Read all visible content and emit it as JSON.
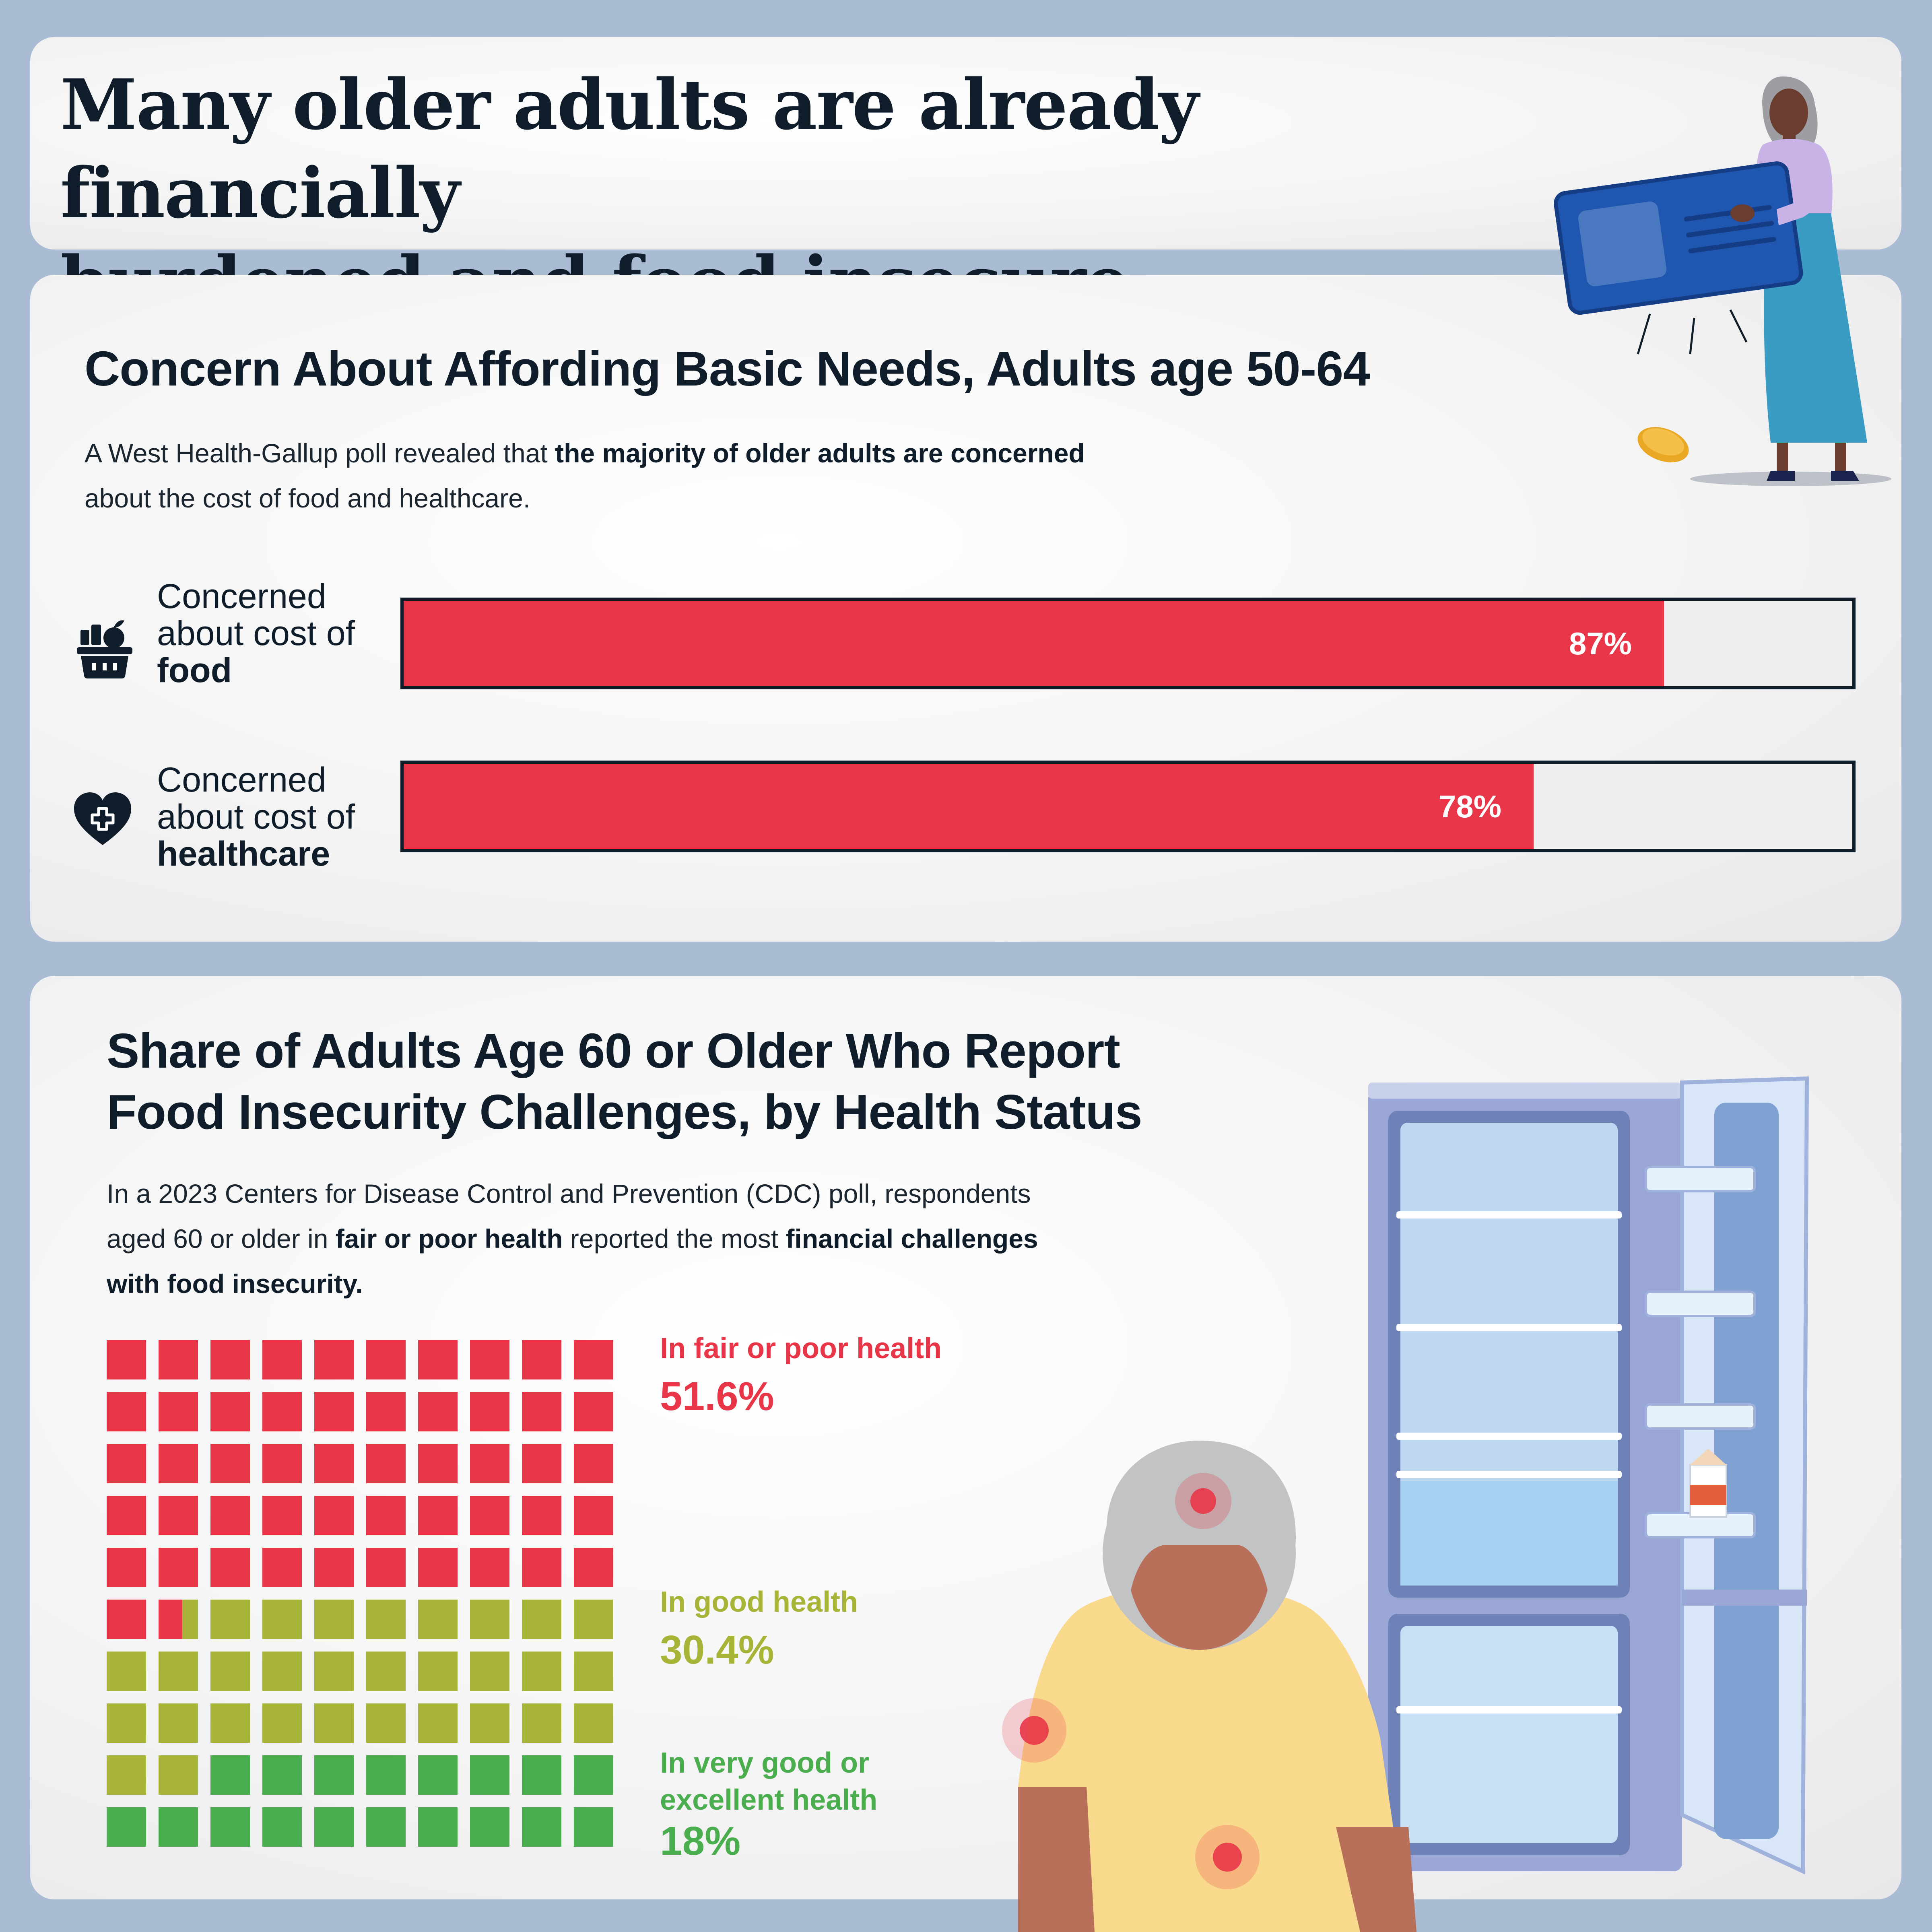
{
  "header": {
    "title_line1": "Many older adults are already financially",
    "title_word_burdened": "burdened",
    "title_and_food": " and food ",
    "title_word_insecure": "insecure"
  },
  "afford_section": {
    "title": "Concern About Affording Basic Needs, Adults age 50-64",
    "desc_plain_1": "A West Health-Gallup poll revealed that ",
    "desc_bold": "the majority of older adults are concerned",
    "desc_plain_2": "about the cost of food and healthcare."
  },
  "insecurity_section": {
    "title_line1": "Share of Adults Age 60 or Older Who Report",
    "title_line2": "Food Insecurity Challenges, by Health Status",
    "desc_1": "In a 2023 Centers for Disease Control and Prevention (CDC) poll, respondents",
    "desc_2a": "aged 60 or older in ",
    "desc_2b": "fair or poor health",
    "desc_2c": " reported the most ",
    "desc_2d": "financial challenges",
    "desc_3": "with food insecurity."
  },
  "colors": {
    "red": "#e83648",
    "olive": "#a8b438",
    "green": "#4aae4f",
    "navy": "#0f1d2b"
  },
  "icons": {
    "food": "grocery-basket-icon",
    "healthcare": "heart-medical-icon"
  },
  "chart_data": [
    {
      "type": "bar",
      "orientation": "horizontal",
      "categories": [
        "Concerned about cost of food",
        "Concerned about cost of healthcare"
      ],
      "labels": [
        {
          "line1": "Concerned",
          "line2": "about cost of",
          "line3": "food"
        },
        {
          "line1": "Concerned",
          "line2": "about cost of",
          "line3": "healthcare"
        }
      ],
      "values": [
        87,
        78
      ],
      "value_labels": [
        "87%",
        "78%"
      ],
      "xlim": [
        0,
        100
      ]
    },
    {
      "type": "waffle",
      "grid": [
        10,
        10
      ],
      "series": [
        {
          "name": "In fair or poor health",
          "value": 51.6,
          "label": "51.6%",
          "color": "#e83648"
        },
        {
          "name": "In good health",
          "value": 30.4,
          "label": "30.4%",
          "color": "#a8b438"
        },
        {
          "name": "In very good or excellent health",
          "value": 18,
          "label": "18%",
          "color": "#4aae4f"
        }
      ],
      "legend_lines": {
        "fair_poor": "In fair or poor health",
        "good": "In good health",
        "very_good_1": "In very good or",
        "very_good_2": "excellent health"
      }
    }
  ]
}
